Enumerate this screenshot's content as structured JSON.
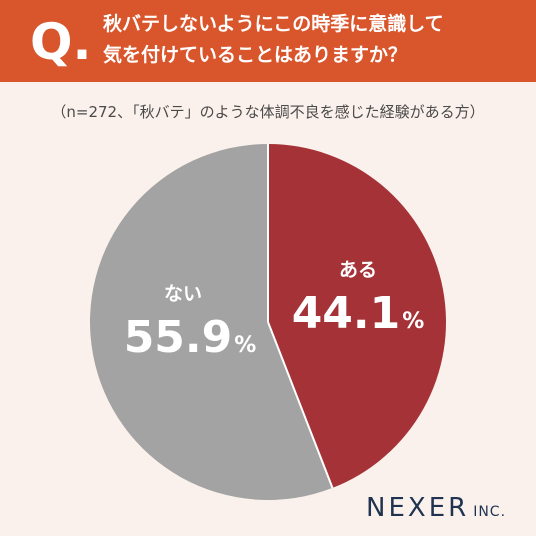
{
  "header": {
    "q_mark": "Q.",
    "title_line1": "秋バテしないようにこの時季に意識して",
    "title_line2": "気を付けていることはありますか？"
  },
  "note": "（n=272、「秋バテ」のような体調不良を感じた経験がある方）",
  "chart_data": {
    "type": "pie",
    "slices": [
      {
        "label": "ある",
        "value": 44.1,
        "display": "44.1",
        "color": "#a53237"
      },
      {
        "label": "ない",
        "value": 55.9,
        "display": "55.9",
        "color": "#a3a3a3"
      }
    ],
    "unit": "%",
    "start": "12 o'clock",
    "direction": "clockwise"
  },
  "logo": {
    "main": "NEXER",
    "sub": "INC."
  }
}
